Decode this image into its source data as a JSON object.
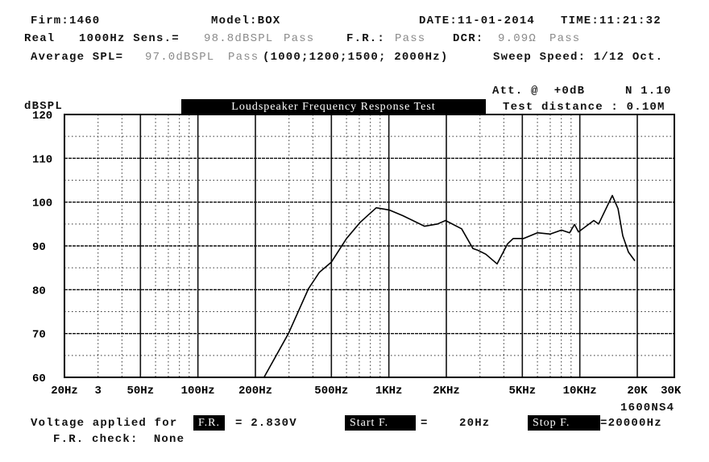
{
  "header": {
    "firm": "Firm:1460",
    "model": "Model:BOX",
    "date": "DATE:11-01-2014",
    "time": "TIME:11:21:32",
    "real_label": "Real",
    "sens_label": "1000Hz Sens.=",
    "sens_value": "98.8dBSPL",
    "sens_status": "Pass",
    "fr_label": "F.R.:",
    "fr_status": "Pass",
    "dcr_label": "DCR:",
    "dcr_value": "9.09Ω",
    "dcr_status": "Pass",
    "avg_label": "Average SPL=",
    "avg_value": "97.0dBSPL",
    "avg_status": "Pass",
    "avg_freqs": "(1000;1200;1500; 2000Hz)",
    "sweep_speed": "Sweep Speed: 1/12 Oct.",
    "att": "Att. @  +0dB",
    "n_value": "N 1.10",
    "test_distance": "Test distance : 0.10M"
  },
  "footer": {
    "model_code": "1600NS4",
    "voltage_label": "Voltage applied for",
    "fr_box": "F.R.",
    "voltage_value": "= 2.830V",
    "start_box": "Start F.",
    "start_eq": "=",
    "start_value": "20Hz",
    "stop_box": "Stop F.",
    "stop_value": "=20000Hz",
    "fr_check": "F.R. check:  None"
  },
  "chart_data": {
    "type": "line",
    "title": "Loudspeaker Frequency Response Test",
    "ylabel": "dBSPL",
    "xscale": "log",
    "xlim": [
      20,
      30000
    ],
    "ylim": [
      60,
      120
    ],
    "grid": true,
    "x_tick_labels": [
      {
        "f": 20,
        "label": "20Hz"
      },
      {
        "f": 30,
        "label": "3"
      },
      {
        "f": 50,
        "label": "50Hz"
      },
      {
        "f": 100,
        "label": "100Hz"
      },
      {
        "f": 200,
        "label": "200Hz"
      },
      {
        "f": 500,
        "label": "500Hz"
      },
      {
        "f": 1000,
        "label": "1KHz"
      },
      {
        "f": 2000,
        "label": "2KHz"
      },
      {
        "f": 5000,
        "label": "5KHz"
      },
      {
        "f": 10000,
        "label": "10KHz"
      },
      {
        "f": 20000,
        "label": "20K"
      },
      {
        "f": 30000,
        "label": "30K"
      }
    ],
    "y_tick_labels": [
      "120",
      "110",
      "100",
      "90",
      "80",
      "70",
      "60"
    ],
    "series": [
      {
        "x": [
          222,
          298,
          379,
          433,
          500,
          600,
          708,
          859,
          1003,
          1184,
          1539,
          1797,
          1981,
          2405,
          2755,
          2924,
          3221,
          3690,
          4189,
          4480,
          5085,
          5998,
          7003,
          8020,
          8840,
          9380,
          9840,
          11830,
          12540,
          14800,
          15850,
          16790,
          17980,
          19420
        ],
        "y": [
          60,
          70,
          80.2,
          84,
          86.3,
          91.7,
          95.4,
          98.7,
          98.2,
          96.9,
          94.5,
          95.0,
          95.8,
          93.9,
          89.4,
          89.0,
          88.1,
          85.9,
          90.5,
          91.7,
          91.7,
          93.0,
          92.7,
          93.6,
          93.0,
          94.9,
          93.2,
          95.8,
          95.0,
          101.5,
          98.5,
          92.3,
          88.6,
          86.6
        ]
      }
    ]
  }
}
